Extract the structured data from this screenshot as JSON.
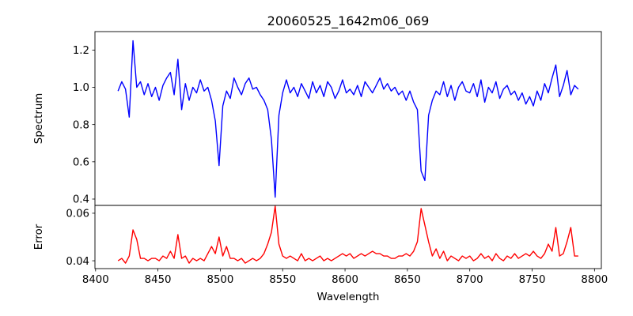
{
  "chart_data": [
    {
      "type": "line",
      "title": "20060525_1642m06_069",
      "xlabel": "",
      "ylabel": "Spectrum",
      "xlim": [
        8399.5,
        8805.5
      ],
      "ylim": [
        0.366,
        1.299
      ],
      "yticks": [
        0.4,
        0.6,
        0.8,
        1.0,
        1.2
      ],
      "ytick_labels": [
        "0.4",
        "0.6",
        "0.8",
        "1.0",
        "1.2"
      ],
      "grid": false,
      "series": [
        {
          "name": "Spectrum",
          "color": "#0000ff",
          "x_start": 8418,
          "x_step": 3,
          "values": [
            0.98,
            1.03,
            0.99,
            0.84,
            1.25,
            1.0,
            1.03,
            0.96,
            1.02,
            0.95,
            1.0,
            0.93,
            1.01,
            1.05,
            1.08,
            0.96,
            1.15,
            0.88,
            1.02,
            0.93,
            1.0,
            0.97,
            1.04,
            0.98,
            1.0,
            0.93,
            0.82,
            0.58,
            0.9,
            0.98,
            0.94,
            1.05,
            1.0,
            0.96,
            1.02,
            1.05,
            0.99,
            1.0,
            0.96,
            0.93,
            0.88,
            0.72,
            0.41,
            0.85,
            0.97,
            1.04,
            0.97,
            1.0,
            0.95,
            1.02,
            0.98,
            0.94,
            1.03,
            0.97,
            1.01,
            0.95,
            1.03,
            1.0,
            0.94,
            0.98,
            1.04,
            0.97,
            0.99,
            0.96,
            1.01,
            0.95,
            1.03,
            1.0,
            0.97,
            1.01,
            1.05,
            0.99,
            1.02,
            0.98,
            1.0,
            0.96,
            0.98,
            0.93,
            0.98,
            0.92,
            0.88,
            0.55,
            0.5,
            0.85,
            0.93,
            0.98,
            0.96,
            1.03,
            0.95,
            1.01,
            0.93,
            1.0,
            1.03,
            0.98,
            0.97,
            1.02,
            0.95,
            1.04,
            0.92,
            1.0,
            0.97,
            1.03,
            0.94,
            0.99,
            1.01,
            0.96,
            0.98,
            0.93,
            0.97,
            0.91,
            0.95,
            0.9,
            0.98,
            0.93,
            1.02,
            0.97,
            1.05,
            1.12,
            0.95,
            1.01,
            1.09,
            0.96,
            1.01,
            0.99
          ]
        }
      ]
    },
    {
      "type": "line",
      "title": "",
      "xlabel": "Wavelength",
      "ylabel": "Error",
      "xlim": [
        8399.5,
        8805.5
      ],
      "ylim": [
        0.0367,
        0.0633
      ],
      "xticks": [
        8400,
        8450,
        8500,
        8550,
        8600,
        8650,
        8700,
        8750,
        8800
      ],
      "xtick_labels": [
        "8400",
        "8450",
        "8500",
        "8550",
        "8600",
        "8650",
        "8700",
        "8750",
        "8800"
      ],
      "yticks": [
        0.04,
        0.06
      ],
      "ytick_labels": [
        "0.04",
        "0.06"
      ],
      "grid": false,
      "series": [
        {
          "name": "Error",
          "color": "#ff0000",
          "x_start": 8418,
          "x_step": 3,
          "values": [
            0.04,
            0.041,
            0.039,
            0.042,
            0.053,
            0.049,
            0.041,
            0.041,
            0.04,
            0.041,
            0.041,
            0.04,
            0.042,
            0.041,
            0.044,
            0.041,
            0.051,
            0.041,
            0.042,
            0.039,
            0.041,
            0.04,
            0.041,
            0.04,
            0.043,
            0.046,
            0.043,
            0.05,
            0.042,
            0.046,
            0.041,
            0.041,
            0.04,
            0.041,
            0.039,
            0.04,
            0.041,
            0.04,
            0.041,
            0.043,
            0.047,
            0.052,
            0.063,
            0.047,
            0.042,
            0.041,
            0.042,
            0.041,
            0.04,
            0.043,
            0.04,
            0.041,
            0.04,
            0.041,
            0.042,
            0.04,
            0.041,
            0.04,
            0.041,
            0.042,
            0.043,
            0.042,
            0.043,
            0.041,
            0.042,
            0.043,
            0.042,
            0.043,
            0.044,
            0.043,
            0.043,
            0.042,
            0.042,
            0.041,
            0.041,
            0.042,
            0.042,
            0.043,
            0.042,
            0.044,
            0.048,
            0.062,
            0.055,
            0.048,
            0.042,
            0.045,
            0.041,
            0.044,
            0.04,
            0.042,
            0.041,
            0.04,
            0.042,
            0.041,
            0.042,
            0.04,
            0.041,
            0.043,
            0.041,
            0.042,
            0.04,
            0.043,
            0.041,
            0.04,
            0.042,
            0.041,
            0.043,
            0.041,
            0.042,
            0.043,
            0.042,
            0.044,
            0.042,
            0.041,
            0.043,
            0.047,
            0.044,
            0.054,
            0.042,
            0.043,
            0.048,
            0.054,
            0.042,
            0.042
          ]
        }
      ]
    }
  ]
}
